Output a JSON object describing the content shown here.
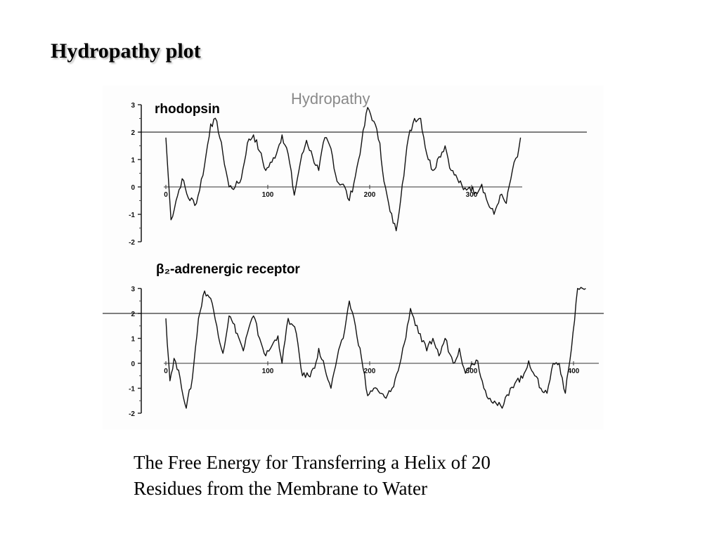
{
  "slide": {
    "title": "Hydropathy plot",
    "caption_line1": "The Free Energy for Transferring a Helix of 20",
    "caption_line2": "Residues from the Membrane to Water"
  },
  "chart_data": [
    {
      "type": "line",
      "title": "Hydropathy",
      "series": [
        {
          "name": "rhodopsin",
          "x": [
            0,
            5,
            10,
            16,
            22,
            30,
            38,
            44,
            50,
            56,
            62,
            68,
            74,
            80,
            86,
            92,
            98,
            104,
            110,
            114,
            120,
            126,
            132,
            138,
            144,
            150,
            156,
            162,
            168,
            174,
            180,
            186,
            192,
            198,
            204,
            210,
            214,
            220,
            226,
            232,
            238,
            244,
            250,
            256,
            262,
            268,
            274,
            280,
            286,
            292,
            298,
            304,
            310,
            316,
            322,
            328,
            334,
            340,
            345,
            348
          ],
          "y": [
            1.8,
            -1.2,
            -0.5,
            0.3,
            -0.4,
            -0.6,
            0.8,
            2.3,
            2.4,
            1.2,
            0.0,
            0.0,
            0.3,
            1.6,
            1.9,
            1.3,
            0.6,
            0.9,
            1.4,
            1.9,
            1.2,
            -0.3,
            0.9,
            1.7,
            1.1,
            0.6,
            1.8,
            1.4,
            0.2,
            0.1,
            -0.5,
            0.4,
            1.6,
            2.9,
            2.4,
            1.6,
            0.2,
            -0.9,
            -1.6,
            0.1,
            1.8,
            2.5,
            2.5,
            1.2,
            0.6,
            1.1,
            1.5,
            0.6,
            0.3,
            -0.1,
            0.0,
            -0.2,
            0.1,
            -0.6,
            -1.0,
            -0.3,
            -0.6,
            0.6,
            1.1,
            1.8
          ]
        }
      ],
      "xticks": [
        "0",
        "100",
        "200",
        "300"
      ],
      "yticks": [
        "3",
        "2",
        "1",
        "0",
        "-1",
        "-2"
      ],
      "xlim": [
        0,
        420
      ],
      "ylim": [
        -2,
        3
      ],
      "reference_line_y": 2
    },
    {
      "type": "line",
      "title": "β₂-adrenergic receptor",
      "series": [
        {
          "name": "β₂-adrenergic receptor",
          "x": [
            0,
            4,
            8,
            14,
            20,
            26,
            32,
            38,
            44,
            50,
            56,
            62,
            66,
            70,
            76,
            80,
            86,
            92,
            98,
            104,
            110,
            114,
            120,
            128,
            134,
            140,
            146,
            150,
            156,
            162,
            168,
            174,
            180,
            186,
            192,
            198,
            204,
            210,
            216,
            222,
            228,
            234,
            240,
            248,
            256,
            262,
            268,
            274,
            282,
            288,
            294,
            300,
            306,
            312,
            318,
            324,
            330,
            338,
            344,
            350,
            356,
            362,
            368,
            374,
            380,
            386,
            392,
            398,
            404,
            409,
            412
          ],
          "y": [
            1.8,
            -0.7,
            0.2,
            -0.6,
            -1.8,
            -0.6,
            1.8,
            2.9,
            2.6,
            1.5,
            0.4,
            1.9,
            1.6,
            1.2,
            0.5,
            1.2,
            1.9,
            1.0,
            0.3,
            0.7,
            1.1,
            0.0,
            1.8,
            1.2,
            -0.5,
            -0.5,
            -0.2,
            0.6,
            -0.2,
            -1.0,
            0.2,
            1.0,
            2.5,
            1.5,
            0.2,
            -1.3,
            -1.0,
            -1.2,
            -1.4,
            -1.0,
            -0.3,
            0.8,
            2.2,
            1.2,
            0.5,
            1.0,
            0.3,
            1.0,
            0.0,
            0.6,
            -0.4,
            0.0,
            0.1,
            -1.0,
            -1.4,
            -1.6,
            -1.8,
            -1.0,
            -0.7,
            -0.6,
            0.1,
            -0.5,
            -1.0,
            -1.2,
            0.0,
            0.0,
            -1.2,
            0.6,
            3.0,
            3.0,
            3.0
          ]
        }
      ],
      "xticks": [
        "0",
        "100",
        "200",
        "300",
        "400"
      ],
      "yticks": [
        "3",
        "2",
        "1",
        "0",
        "-1",
        "-2"
      ],
      "xlim": [
        0,
        420
      ],
      "ylim": [
        -2,
        3
      ],
      "reference_line_y": 2
    }
  ]
}
